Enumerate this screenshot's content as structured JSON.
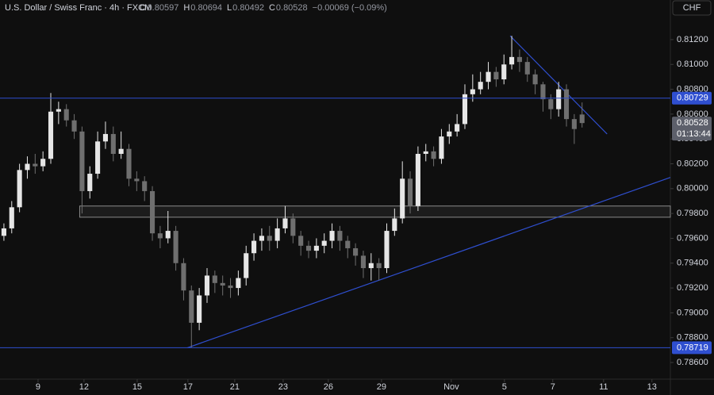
{
  "chart_data": {
    "type": "candlestick",
    "title": "U.S. Dollar / Swiss Franc · 4h · FXCM",
    "ohlc_legend": [
      {
        "key": "O",
        "value": "0.80597"
      },
      {
        "key": "H",
        "value": "0.80694"
      },
      {
        "key": "L",
        "value": "0.80492"
      },
      {
        "key": "C",
        "value": "0.80528"
      }
    ],
    "change": "−0.00069 (−0.09%)",
    "currency": "CHF",
    "up_color": "#e6e6e6",
    "down_color": "#6f6f6f",
    "line_color": "#2f4fd0",
    "open": [
      0.7962,
      0.7968,
      0.7985,
      0.8015,
      0.802,
      0.8018,
      0.8024,
      0.8062,
      0.8064,
      0.8055,
      0.8046,
      0.7998,
      0.8012,
      0.8038,
      0.8044,
      0.8028,
      0.8032,
      0.8008,
      0.8006,
      0.7998,
      0.7964,
      0.796,
      0.7966,
      0.794,
      0.7918,
      0.7892,
      0.7914,
      0.793,
      0.7924,
      0.7922,
      0.792,
      0.7928,
      0.7948,
      0.7958,
      0.7962,
      0.7958,
      0.7968,
      0.7976,
      0.7962,
      0.7954,
      0.795,
      0.7954,
      0.7958,
      0.7966,
      0.7958,
      0.7952,
      0.7946,
      0.7936,
      0.794,
      0.7936,
      0.7966,
      0.7976,
      0.8008,
      0.7986,
      0.8028,
      0.803,
      0.8024,
      0.8042,
      0.8046,
      0.8052,
      0.8076,
      0.808,
      0.8086,
      0.8094,
      0.8088,
      0.81,
      0.8106,
      0.8102,
      0.8092,
      0.8084,
      0.8072,
      0.8064,
      0.808,
      0.8056,
      0.80597
    ],
    "high": [
      0.7972,
      0.799,
      0.802,
      0.8026,
      0.8028,
      0.803,
      0.8077,
      0.807,
      0.8068,
      0.806,
      0.805,
      0.8018,
      0.8046,
      0.8054,
      0.805,
      0.8046,
      0.8036,
      0.8014,
      0.801,
      0.8002,
      0.797,
      0.7982,
      0.797,
      0.7944,
      0.7922,
      0.792,
      0.7936,
      0.7934,
      0.793,
      0.7928,
      0.7934,
      0.7954,
      0.7964,
      0.7968,
      0.797,
      0.7976,
      0.7986,
      0.798,
      0.7966,
      0.7958,
      0.796,
      0.7964,
      0.7972,
      0.797,
      0.7962,
      0.7956,
      0.795,
      0.7948,
      0.7944,
      0.7972,
      0.7984,
      0.8022,
      0.8014,
      0.8034,
      0.8036,
      0.8034,
      0.8048,
      0.8052,
      0.806,
      0.8084,
      0.8092,
      0.8094,
      0.8102,
      0.8098,
      0.8108,
      0.8123,
      0.8112,
      0.8106,
      0.8096,
      0.8086,
      0.8076,
      0.8086,
      0.8084,
      0.806,
      0.80694
    ],
    "low": [
      0.7958,
      0.7964,
      0.7981,
      0.8008,
      0.8012,
      0.8014,
      0.802,
      0.8052,
      0.805,
      0.804,
      0.798,
      0.7992,
      0.8008,
      0.8032,
      0.8022,
      0.8024,
      0.8002,
      0.7998,
      0.799,
      0.7958,
      0.7952,
      0.7956,
      0.7934,
      0.791,
      0.78719,
      0.7886,
      0.7908,
      0.7916,
      0.7914,
      0.7912,
      0.7914,
      0.7922,
      0.7942,
      0.795,
      0.795,
      0.7952,
      0.7964,
      0.7956,
      0.7946,
      0.7944,
      0.7944,
      0.7948,
      0.7952,
      0.795,
      0.7944,
      0.7938,
      0.7928,
      0.7926,
      0.7926,
      0.7932,
      0.7962,
      0.7972,
      0.798,
      0.7982,
      0.8022,
      0.8018,
      0.802,
      0.8036,
      0.8042,
      0.8048,
      0.807,
      0.8076,
      0.808,
      0.8082,
      0.8084,
      0.8096,
      0.8094,
      0.8086,
      0.8076,
      0.8062,
      0.8056,
      0.8058,
      0.805,
      0.8036,
      0.80492
    ],
    "close": [
      0.7968,
      0.7985,
      0.8015,
      0.802,
      0.8018,
      0.8024,
      0.8062,
      0.8064,
      0.8055,
      0.8046,
      0.7998,
      0.8012,
      0.8038,
      0.8044,
      0.8028,
      0.8032,
      0.8008,
      0.8006,
      0.7998,
      0.7964,
      0.796,
      0.7966,
      0.794,
      0.7918,
      0.7892,
      0.7914,
      0.793,
      0.7924,
      0.7922,
      0.792,
      0.7928,
      0.7948,
      0.7958,
      0.7962,
      0.7958,
      0.7968,
      0.7976,
      0.7962,
      0.7954,
      0.795,
      0.7954,
      0.7958,
      0.7966,
      0.7958,
      0.7952,
      0.7946,
      0.7936,
      0.794,
      0.7936,
      0.7966,
      0.7976,
      0.8008,
      0.7986,
      0.8028,
      0.803,
      0.8024,
      0.8042,
      0.8046,
      0.8052,
      0.8076,
      0.808,
      0.8086,
      0.8094,
      0.8088,
      0.81,
      0.8106,
      0.8102,
      0.8092,
      0.8084,
      0.8072,
      0.8064,
      0.808,
      0.8056,
      0.8048,
      0.80528
    ],
    "xlim": [
      -0.5,
      85.3
    ],
    "xticks": [
      {
        "value": 4.37,
        "label": "9"
      },
      {
        "value": 10.25,
        "label": "12"
      },
      {
        "value": 17.06,
        "label": "15"
      },
      {
        "value": 23.55,
        "label": "17"
      },
      {
        "value": 29.54,
        "label": "21"
      },
      {
        "value": 35.74,
        "label": "23"
      },
      {
        "value": 41.52,
        "label": "26"
      },
      {
        "value": 48.33,
        "label": "29"
      },
      {
        "value": 57.26,
        "label": "Nov"
      },
      {
        "value": 64.06,
        "label": "5"
      },
      {
        "value": 70.25,
        "label": "7"
      },
      {
        "value": 76.75,
        "label": "11"
      },
      {
        "value": 82.94,
        "label": "13"
      }
    ],
    "ylim": [
      0.78466,
      0.81519
    ],
    "yticks": [
      {
        "value": 0.812,
        "label": "0.81200"
      },
      {
        "value": 0.81,
        "label": "0.81000"
      },
      {
        "value": 0.808,
        "label": "0.80800"
      },
      {
        "value": 0.806,
        "label": "0.80600"
      },
      {
        "value": 0.804,
        "label": "0.80400"
      },
      {
        "value": 0.802,
        "label": "0.80200"
      },
      {
        "value": 0.8,
        "label": "0.80000"
      },
      {
        "value": 0.798,
        "label": "0.79800"
      },
      {
        "value": 0.796,
        "label": "0.79600"
      },
      {
        "value": 0.794,
        "label": "0.79400"
      },
      {
        "value": 0.792,
        "label": "0.79200"
      },
      {
        "value": 0.79,
        "label": "0.79000"
      },
      {
        "value": 0.788,
        "label": "0.78800"
      },
      {
        "value": 0.786,
        "label": "0.78600"
      }
    ],
    "levels": [
      {
        "value": 0.80729,
        "label": "0.80729"
      },
      {
        "value": 0.78719,
        "label": "0.78719"
      }
    ],
    "last_price": {
      "value": 0.80528,
      "label": "0.80528",
      "countdown": "01:13:44"
    },
    "trendlines": [
      [
        [
          23.5,
          0.78719
        ],
        [
          85.3,
          0.8009
        ]
      ],
      [
        [
          64.8,
          0.8123
        ],
        [
          77.2,
          0.8044
        ]
      ]
    ],
    "zone": {
      "x": [
        9.7,
        85.3
      ],
      "price": [
        0.7977,
        0.7986
      ]
    }
  }
}
